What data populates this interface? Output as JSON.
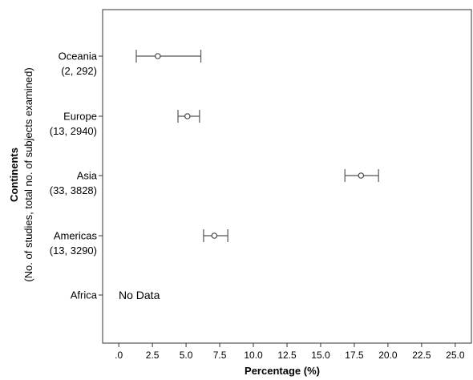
{
  "chart_data": {
    "type": "scatter",
    "xlabel": "Percentage (%)",
    "ylabel": "Continents",
    "ylabel_sub": "(No. of studies, total no. of subjects examined)",
    "xlim": [
      -1.2,
      26.2
    ],
    "x_ticks": [
      0,
      2.5,
      5.0,
      7.5,
      10.0,
      12.5,
      15.0,
      17.5,
      20.0,
      22.5,
      25.0
    ],
    "x_tick_labels": [
      ".0",
      "2.5",
      "5.0",
      "7.5",
      "10.0",
      "12.5",
      "15.0",
      "17.5",
      "20.0",
      "22.5",
      "25.0"
    ],
    "grid": false,
    "categories": [
      {
        "name": "Oceania",
        "detail": "(2, 292)",
        "estimate": 2.9,
        "ci_low": 1.3,
        "ci_high": 6.1
      },
      {
        "name": "Europe",
        "detail": "(13, 2940)",
        "estimate": 5.1,
        "ci_low": 4.4,
        "ci_high": 6.0
      },
      {
        "name": "Asia",
        "detail": "(33, 3828)",
        "estimate": 18.0,
        "ci_low": 16.8,
        "ci_high": 19.3
      },
      {
        "name": "Americas",
        "detail": "(13, 3290)",
        "estimate": 7.1,
        "ci_low": 6.3,
        "ci_high": 8.1
      },
      {
        "name": "Africa",
        "detail": "",
        "estimate": null,
        "ci_low": null,
        "ci_high": null,
        "note": "No Data"
      }
    ]
  }
}
